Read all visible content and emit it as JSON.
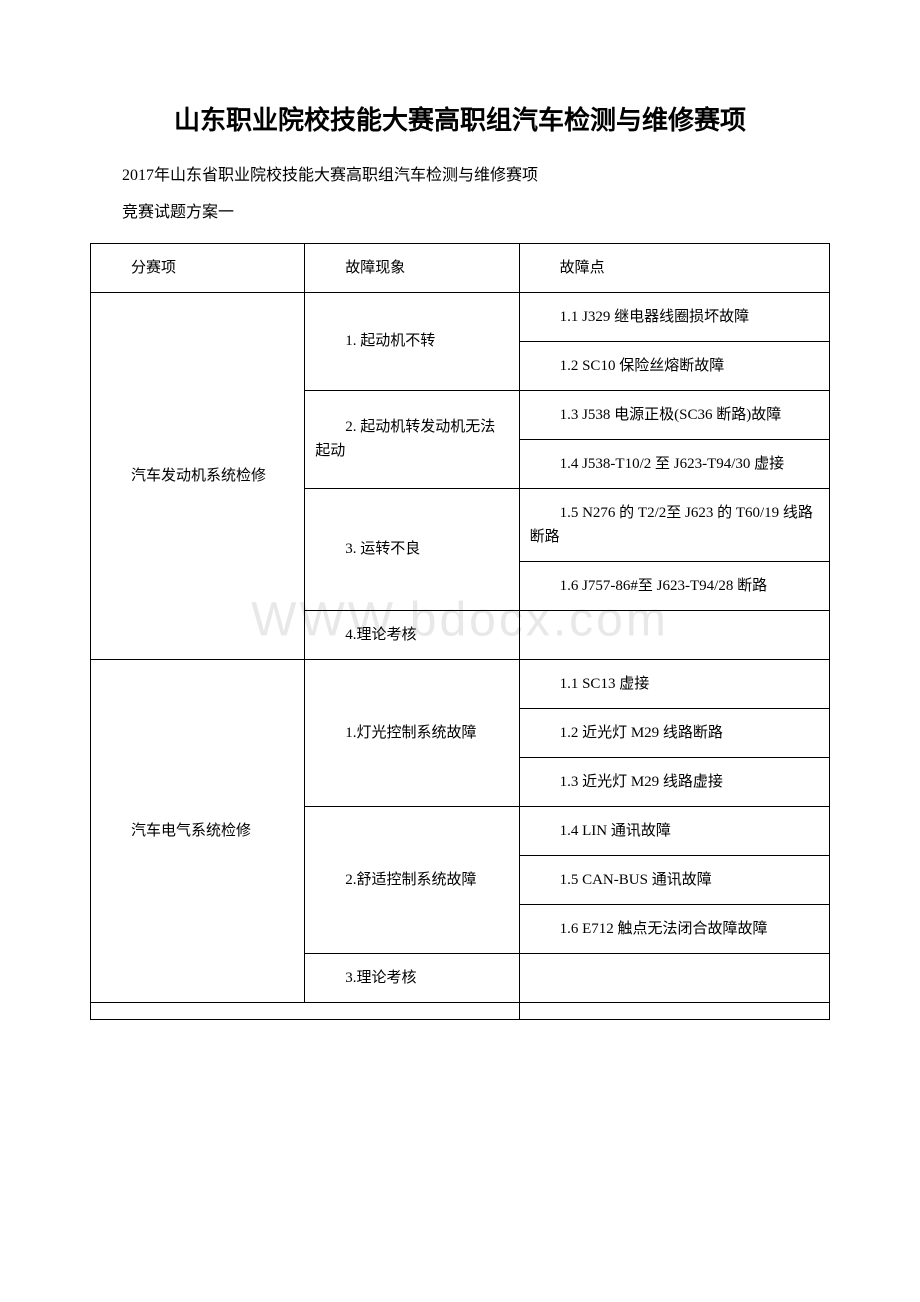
{
  "title": "山东职业院校技能大赛高职组汽车检测与维修赛项",
  "subtitle": "2017年山东省职业院校技能大赛高职组汽车检测与维修赛项",
  "plan_label": "竞赛试题方案一",
  "watermark": "WWW.bdocx.com",
  "table": {
    "columns": [
      "分赛项",
      "故障现象",
      "故障点"
    ],
    "col_widths": [
      "29%",
      "29%",
      "42%"
    ],
    "border_color": "#000000",
    "font_size": 15,
    "sections": [
      {
        "category": "汽车发动机系统检修",
        "items": [
          {
            "phenomenon": "1. 起动机不转",
            "points": [
              "1.1 J329 继电器线圈损坏故障",
              "1.2 SC10 保险丝熔断故障"
            ]
          },
          {
            "phenomenon": "2. 起动机转发动机无法起动",
            "points": [
              "1.3 J538 电源正极(SC36 断路)故障",
              "1.4 J538-T10/2 至 J623-T94/30 虚接"
            ]
          },
          {
            "phenomenon": "3. 运转不良",
            "points": [
              "1.5 N276 的 T2/2至 J623 的 T60/19 线路断路",
              "1.6 J757-86#至 J623-T94/28 断路"
            ]
          },
          {
            "phenomenon": "4.理论考核",
            "points": [
              ""
            ]
          }
        ]
      },
      {
        "category": "汽车电气系统检修",
        "items": [
          {
            "phenomenon": "1.灯光控制系统故障",
            "points": [
              "1.1 SC13 虚接",
              "1.2 近光灯 M29 线路断路",
              "1.3 近光灯 M29 线路虚接"
            ]
          },
          {
            "phenomenon": "2.舒适控制系统故障",
            "points": [
              "1.4 LIN 通讯故障",
              "1.5 CAN-BUS 通讯故障",
              "1.6 E712 触点无法闭合故障故障"
            ]
          },
          {
            "phenomenon": "3.理论考核",
            "points": [
              ""
            ]
          }
        ]
      }
    ]
  }
}
